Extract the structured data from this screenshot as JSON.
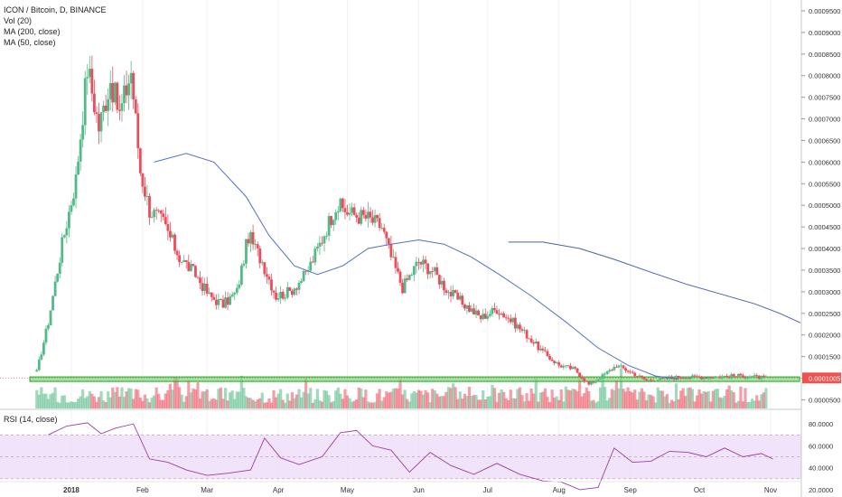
{
  "legend": {
    "symbol": "ICON / Bitcoin, D, BINANCE",
    "vol": "Vol (20)",
    "ma200": "MA (200, close)",
    "ma50": "MA (50, close)",
    "rsi": "RSI (14, close)"
  },
  "colors": {
    "up": "#53b987",
    "down": "#eb4d5c",
    "ma50": "#5470c6",
    "ma200": "#4a61a8",
    "zone_fill": "#7be07b",
    "zone_stroke": "#2e9e2e",
    "rsi_line": "#9c3fa0",
    "rsi_band": "#eedcf7",
    "price_tag": "#ef5350",
    "vol_ma": "#f0a070"
  },
  "chart_data": [
    {
      "type": "candlestick",
      "title": "ICON / Bitcoin, D, BINANCE",
      "x_ticks": [
        "2018",
        "Feb",
        "Mar",
        "Apr",
        "May",
        "Jun",
        "Jul",
        "Aug",
        "Sep",
        "Oct",
        "Nov"
      ],
      "y_ticks": [
        "0.0000500",
        "0.0001000",
        "0.0001500",
        "0.0002000",
        "0.0002500",
        "0.0003000",
        "0.0003500",
        "0.0004000",
        "0.0004500",
        "0.0005000",
        "0.0005500",
        "0.0006000",
        "0.0006500",
        "0.0007000",
        "0.0007500",
        "0.0008000",
        "0.0008500",
        "0.0009000",
        "0.0009500"
      ],
      "ylim": [
        5e-05,
        0.00095
      ],
      "last_price_label": "0.0001005",
      "close_keypoints": [
        [
          "2017-12-17",
          0.000115
        ],
        [
          "2017-12-22",
          0.00023
        ],
        [
          "2017-12-28",
          0.00041
        ],
        [
          "2018-01-03",
          0.00056
        ],
        [
          "2018-01-08",
          0.00082
        ],
        [
          "2018-01-13",
          0.00068
        ],
        [
          "2018-01-18",
          0.00079
        ],
        [
          "2018-01-22",
          0.00071
        ],
        [
          "2018-01-27",
          0.00081
        ],
        [
          "2018-01-31",
          0.00058
        ],
        [
          "2018-02-04",
          0.00049
        ],
        [
          "2018-02-10",
          0.00046
        ],
        [
          "2018-02-17",
          0.00038
        ],
        [
          "2018-02-24",
          0.00034
        ],
        [
          "2018-03-02",
          0.00029
        ],
        [
          "2018-03-08",
          0.00027
        ],
        [
          "2018-03-14",
          0.0003
        ],
        [
          "2018-03-19",
          0.00043
        ],
        [
          "2018-03-25",
          0.00037
        ],
        [
          "2018-03-31",
          0.00029
        ],
        [
          "2018-04-06",
          0.0003
        ],
        [
          "2018-04-13",
          0.00034
        ],
        [
          "2018-04-19",
          0.00041
        ],
        [
          "2018-04-26",
          0.0005
        ],
        [
          "2018-05-03",
          0.00048
        ],
        [
          "2018-05-10",
          0.00047
        ],
        [
          "2018-05-16",
          0.00045
        ],
        [
          "2018-05-20",
          0.00038
        ],
        [
          "2018-05-25",
          0.00031
        ],
        [
          "2018-06-01",
          0.00037
        ],
        [
          "2018-06-07",
          0.00035
        ],
        [
          "2018-06-14",
          0.0003
        ],
        [
          "2018-06-21",
          0.00027
        ],
        [
          "2018-06-28",
          0.00024
        ],
        [
          "2018-07-05",
          0.00026
        ],
        [
          "2018-07-12",
          0.00023
        ],
        [
          "2018-07-18",
          0.0002
        ],
        [
          "2018-07-25",
          0.00016
        ],
        [
          "2018-08-01",
          0.00013
        ],
        [
          "2018-08-08",
          0.00012
        ],
        [
          "2018-08-14",
          8.5e-05
        ],
        [
          "2018-08-20",
          0.000105
        ],
        [
          "2018-08-26",
          0.00013
        ],
        [
          "2018-09-02",
          0.000112
        ],
        [
          "2018-09-08",
          9.5e-05
        ],
        [
          "2018-09-15",
          9.8e-05
        ],
        [
          "2018-09-22",
          0.000103
        ],
        [
          "2018-10-01",
          0.000102
        ],
        [
          "2018-10-10",
          0.000104
        ],
        [
          "2018-10-20",
          0.000106
        ],
        [
          "2018-10-30",
          0.0001005
        ]
      ],
      "series": [
        {
          "name": "MA (50, close)",
          "points": [
            [
              "2018-02-06",
              0.0006
            ],
            [
              "2018-02-20",
              0.00062
            ],
            [
              "2018-03-04",
              0.0006
            ],
            [
              "2018-03-18",
              0.00052
            ],
            [
              "2018-03-28",
              0.00043
            ],
            [
              "2018-04-08",
              0.00036
            ],
            [
              "2018-04-18",
              0.00034
            ],
            [
              "2018-04-29",
              0.00036
            ],
            [
              "2018-05-10",
              0.0004
            ],
            [
              "2018-05-20",
              0.00041
            ],
            [
              "2018-06-01",
              0.00042
            ],
            [
              "2018-06-12",
              0.00041
            ],
            [
              "2018-06-24",
              0.00038
            ],
            [
              "2018-07-06",
              0.00034
            ],
            [
              "2018-07-20",
              0.00029
            ],
            [
              "2018-08-04",
              0.00023
            ],
            [
              "2018-08-18",
              0.00017
            ],
            [
              "2018-08-31",
              0.00013
            ],
            [
              "2018-09-12",
              0.000105
            ],
            [
              "2018-09-22",
              9.8e-05
            ]
          ]
        },
        {
          "name": "MA (200, close)",
          "points": [
            [
              "2018-07-10",
              0.000415
            ],
            [
              "2018-07-25",
              0.000415
            ],
            [
              "2018-08-10",
              0.0004
            ],
            [
              "2018-08-25",
              0.000375
            ],
            [
              "2018-09-10",
              0.000345
            ],
            [
              "2018-09-25",
              0.000318
            ],
            [
              "2018-10-10",
              0.000295
            ],
            [
              "2018-10-25",
              0.000272
            ],
            [
              "2018-11-05",
              0.00025
            ],
            [
              "2018-11-14",
              0.000228
            ]
          ]
        }
      ],
      "support_zone": [
        9.25e-05,
        0.000103
      ]
    },
    {
      "type": "line",
      "title": "RSI (14, close)",
      "y_ticks": [
        "80.0000",
        "60.0000",
        "40.0000",
        "20.0000"
      ],
      "ylim": [
        15,
        85
      ],
      "band": [
        30,
        70
      ],
      "points": [
        [
          "2017-12-22",
          70
        ],
        [
          "2017-12-30",
          78
        ],
        [
          "2018-01-08",
          81
        ],
        [
          "2018-01-14",
          71
        ],
        [
          "2018-01-20",
          76
        ],
        [
          "2018-01-28",
          80
        ],
        [
          "2018-02-04",
          48
        ],
        [
          "2018-02-12",
          45
        ],
        [
          "2018-02-20",
          38
        ],
        [
          "2018-03-01",
          33
        ],
        [
          "2018-03-10",
          35
        ],
        [
          "2018-03-20",
          38
        ],
        [
          "2018-03-26",
          67
        ],
        [
          "2018-04-02",
          49
        ],
        [
          "2018-04-10",
          43
        ],
        [
          "2018-04-20",
          50
        ],
        [
          "2018-04-28",
          72
        ],
        [
          "2018-05-05",
          74
        ],
        [
          "2018-05-12",
          60
        ],
        [
          "2018-05-20",
          56
        ],
        [
          "2018-05-28",
          36
        ],
        [
          "2018-06-06",
          54
        ],
        [
          "2018-06-15",
          42
        ],
        [
          "2018-06-25",
          34
        ],
        [
          "2018-07-05",
          44
        ],
        [
          "2018-07-15",
          34
        ],
        [
          "2018-07-25",
          28
        ],
        [
          "2018-08-02",
          27
        ],
        [
          "2018-08-10",
          20
        ],
        [
          "2018-08-18",
          22
        ],
        [
          "2018-08-25",
          58
        ],
        [
          "2018-09-02",
          45
        ],
        [
          "2018-09-10",
          46
        ],
        [
          "2018-09-18",
          55
        ],
        [
          "2018-09-26",
          54
        ],
        [
          "2018-10-04",
          50
        ],
        [
          "2018-10-12",
          58
        ],
        [
          "2018-10-20",
          50
        ],
        [
          "2018-10-28",
          53
        ],
        [
          "2018-11-02",
          48
        ]
      ]
    }
  ]
}
